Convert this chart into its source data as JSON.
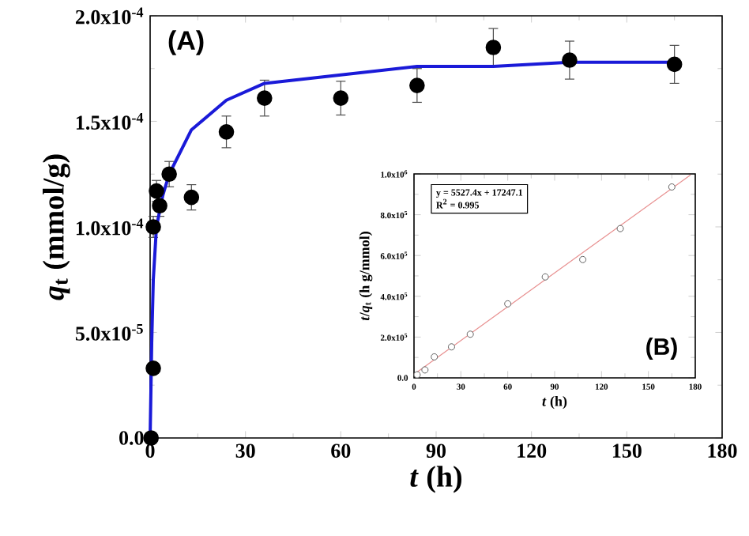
{
  "chart_data": [
    {
      "type": "scatter",
      "title": "(A)",
      "xlabel": "*t* (h)",
      "ylabel": "*q*$_{t}$ (mmol/g)",
      "xlim": [
        0,
        180
      ],
      "xticks": [
        0,
        30,
        60,
        90,
        120,
        150,
        180
      ],
      "ylim": [
        0,
        0.0002
      ],
      "yticks": [
        {
          "value": 0,
          "label": "0.0"
        },
        {
          "value": 5e-05,
          "label": "5.0x10$^{-5}$"
        },
        {
          "value": 0.0001,
          "label": "1.0x10$^{-4}$"
        },
        {
          "value": 0.00015,
          "label": "1.5x10$^{-4}$"
        },
        {
          "value": 0.0002,
          "label": "2.0x10$^{-4}$"
        }
      ],
      "series": [
        {
          "marker": "circle",
          "color": "#000000",
          "x": [
            0.3,
            1,
            1,
            2,
            3,
            6,
            13,
            24,
            36,
            60,
            84,
            108,
            132,
            165
          ],
          "values": [
            0,
            3.3e-05,
            0.0001,
            0.000117,
            0.00011,
            0.000125,
            0.000114,
            0.000145,
            0.000161,
            0.000161,
            0.000167,
            0.000185,
            0.000179,
            0.000177
          ],
          "errors": [
            null,
            null,
            5e-06,
            5e-06,
            5e-06,
            6e-06,
            6e-06,
            7.5e-06,
            8.5e-06,
            8e-06,
            8e-06,
            9e-06,
            9e-06,
            9e-06
          ]
        },
        {
          "type": "line",
          "color": "#1a1ad8",
          "x": [
            0,
            0.5,
            1,
            2,
            4,
            6,
            13,
            24,
            36,
            60,
            84,
            108,
            132,
            165
          ],
          "values": [
            0,
            4.5e-05,
            7.5e-05,
            0.0001,
            0.000115,
            0.000125,
            0.000146,
            0.00016,
            0.000168,
            0.000172,
            0.000176,
            0.000176,
            0.000178,
            0.000178
          ]
        }
      ]
    },
    {
      "type": "scatter",
      "title": "(B)",
      "xlabel": "*t* (h)",
      "ylabel": "*t*/*q*$_{t}$ (h g/mmol)",
      "annotations": [
        "y = 5527.4x + 17247.1",
        "R$^{2}$ = 0.995"
      ],
      "xlim": [
        0,
        180
      ],
      "xticks": [
        0,
        30,
        60,
        90,
        120,
        150,
        180
      ],
      "ylim": [
        0,
        1000000
      ],
      "yticks": [
        {
          "value": 0,
          "label": "0.0"
        },
        {
          "value": 200000,
          "label": "2.0x10$^{5}$"
        },
        {
          "value": 400000,
          "label": "4.0x10$^{5}$"
        },
        {
          "value": 600000,
          "label": "6.0x10$^{5}$"
        },
        {
          "value": 800000,
          "label": "8.0x10$^{5}$"
        },
        {
          "value": 1000000,
          "label": "1.0x10$^{6}$"
        }
      ],
      "series": [
        {
          "type": "line",
          "color": "#e89090",
          "x": [
            0,
            177
          ],
          "values": [
            17000,
            995000
          ]
        },
        {
          "marker": "circle",
          "color": "#606060",
          "x": [
            2,
            7,
            13,
            24,
            36,
            60,
            84,
            108,
            132,
            165
          ],
          "values": [
            15000,
            39000,
            103000,
            152000,
            214000,
            363000,
            495000,
            580000,
            732000,
            936000
          ]
        }
      ]
    }
  ]
}
